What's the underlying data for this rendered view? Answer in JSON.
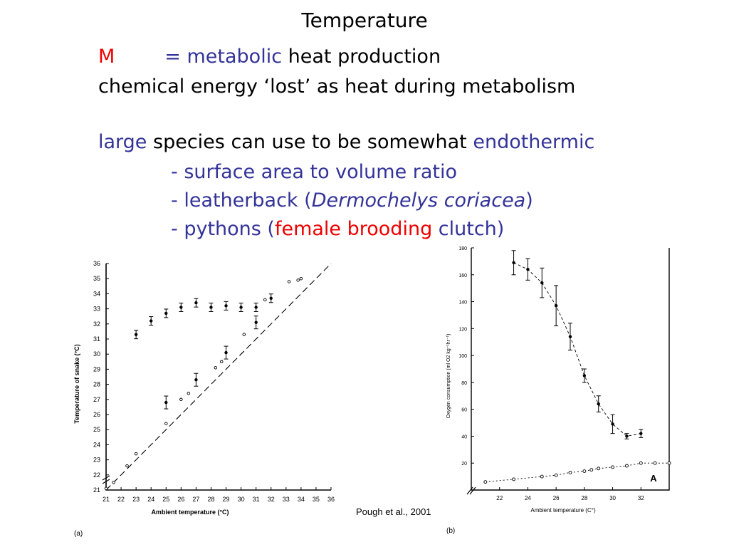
{
  "slide": {
    "title": "Temperature",
    "line1": {
      "m": "M",
      "eq": "= metabolic",
      "rest": " heat production"
    },
    "line2": "chemical energy ‘lost’ as heat during metabolism",
    "line3": {
      "large": "large",
      "mid": " species can use to be somewhat ",
      "endo": "endothermic"
    },
    "bullet1": "- surface area to volume ratio",
    "bullet2": {
      "pre": "- leatherback (",
      "italic": "Dermochelys coriacea",
      "post": ")"
    },
    "bullet3": {
      "pre": "- pythons (",
      "red": "female brooding",
      "post": " clutch)"
    },
    "credit": "Pough et al., 2001"
  },
  "figures": {
    "a": {
      "caption": "(a)"
    },
    "b": {
      "caption": "(b)",
      "panel_letter": "A"
    }
  },
  "chart_data": [
    {
      "type": "scatter",
      "xlabel": "Ambient temperature (°C)",
      "ylabel": "Temperature of snake (°C)",
      "xlim": [
        21,
        36
      ],
      "ylim": [
        21,
        36
      ],
      "xticks": [
        "21",
        "22",
        "23",
        "24",
        "25",
        "26",
        "27",
        "28",
        "29",
        "30",
        "31",
        "32",
        "33",
        "34",
        "35",
        "36"
      ],
      "yticks": [
        "21",
        "22",
        "23",
        "24",
        "25",
        "26",
        "27",
        "28",
        "29",
        "30",
        "31",
        "32",
        "33",
        "34",
        "35",
        "36"
      ],
      "reference_line": "dashed diagonal",
      "series": [
        {
          "marker": "filled with error bars",
          "x": [
            23,
            24,
            25,
            26,
            27,
            28,
            29,
            30,
            31,
            32
          ],
          "y": [
            31.3,
            32.2,
            32.7,
            33.1,
            33.4,
            33.1,
            33.2,
            33.1,
            33.1,
            33.7
          ]
        },
        {
          "marker": "filled with error bars",
          "x": [
            25,
            27,
            29,
            31
          ],
          "y": [
            26.8,
            28.3,
            30.1,
            32.1
          ]
        },
        {
          "marker": "open",
          "x": [
            21,
            21.5,
            22.4,
            23,
            25,
            26,
            26.5,
            28.3,
            28.7,
            30.2,
            31.6,
            33.2,
            33.8,
            34
          ],
          "y": [
            21.1,
            21.5,
            22.6,
            23.4,
            25.4,
            27.0,
            27.4,
            29.1,
            29.5,
            31.3,
            33.6,
            34.8,
            34.9,
            35.0
          ]
        }
      ]
    },
    {
      "type": "line",
      "xlabel": "Ambient temperature (C°)",
      "ylabel": "Oxygen consumption (ml O2 kg⁻¹hr⁻¹)",
      "xlim": [
        20,
        34
      ],
      "ylim": [
        0,
        180
      ],
      "xticks": [
        "22",
        "24",
        "26",
        "28",
        "30",
        "32"
      ],
      "yticks": [
        "20",
        "40",
        "60",
        "80",
        "100",
        "120",
        "140",
        "160",
        "180"
      ],
      "series": [
        {
          "marker": "filled with error bars",
          "x": [
            23,
            24,
            25,
            26,
            27,
            28,
            29,
            30,
            31,
            32
          ],
          "y": [
            169,
            164,
            154,
            137,
            114,
            85,
            64,
            49,
            40,
            42
          ]
        },
        {
          "marker": "open",
          "x": [
            21,
            23,
            25,
            26,
            27,
            28,
            28.5,
            29,
            30,
            31,
            32,
            33,
            34
          ],
          "y": [
            6,
            8,
            10,
            11,
            13,
            14,
            15,
            16,
            17,
            18,
            20,
            20,
            20
          ]
        }
      ]
    }
  ]
}
